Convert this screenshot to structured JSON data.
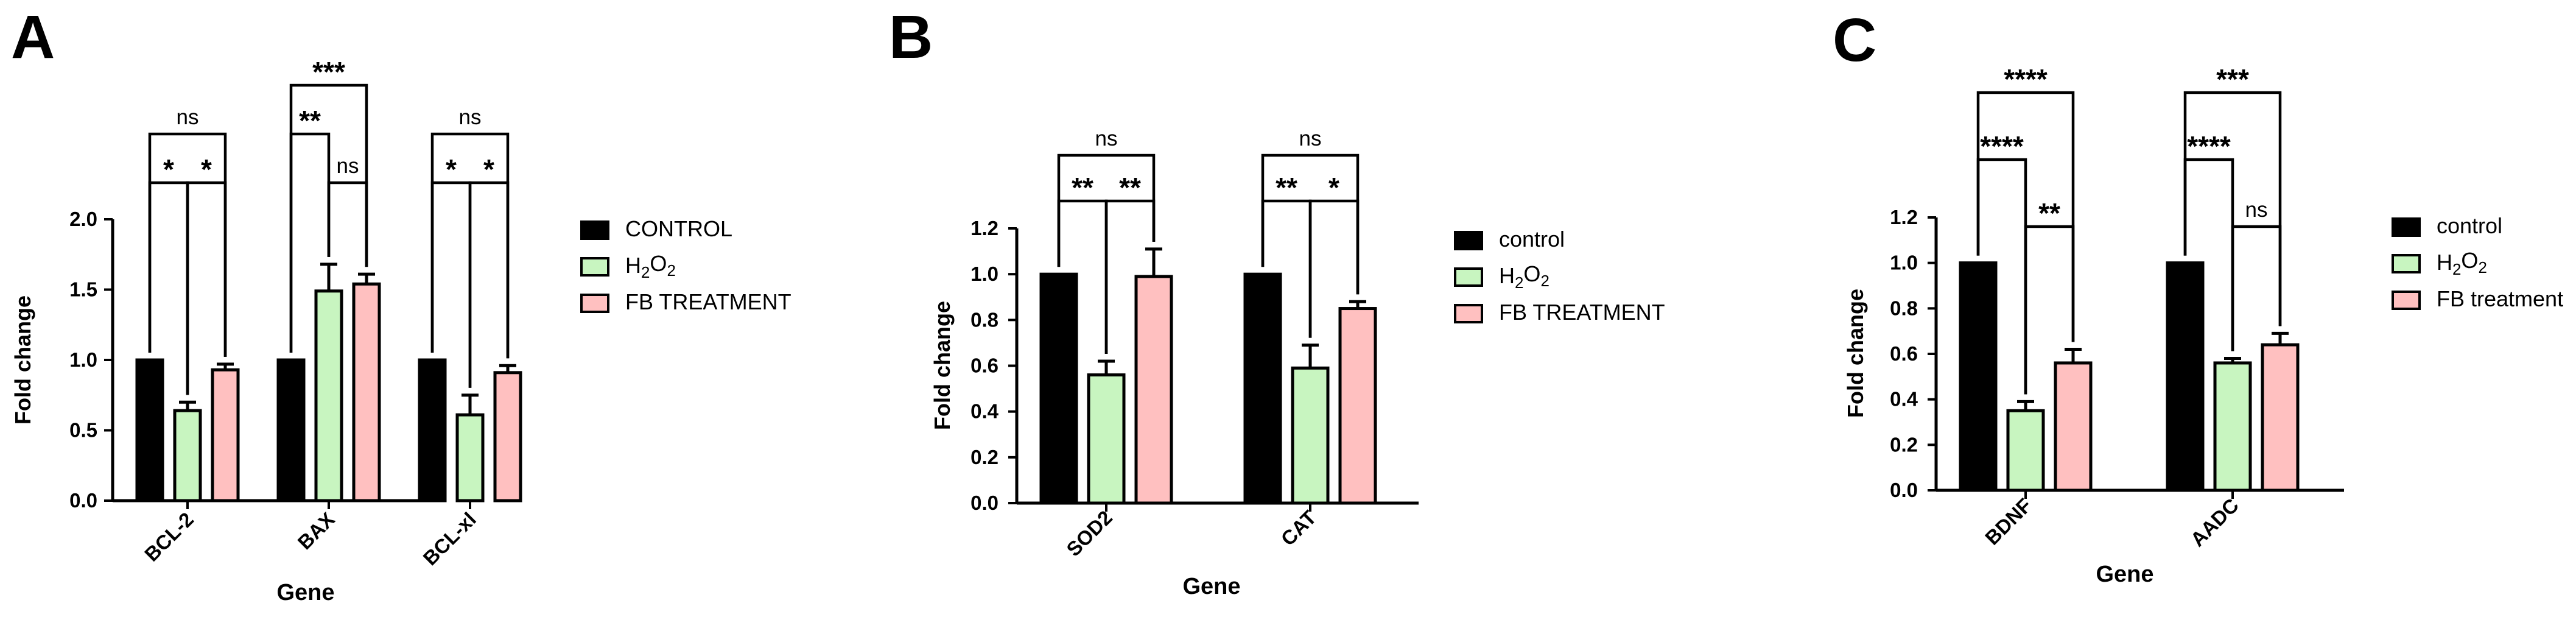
{
  "colors": {
    "control": "#000000",
    "h2o2": "#c8f5c0",
    "fb": "#ffc0c0",
    "stroke": "#000000"
  },
  "chart_data": [
    {
      "panel_label": "A",
      "type": "bar",
      "xlabel": "Gene",
      "ylabel": "Fold change",
      "ylim": [
        0,
        2.0
      ],
      "yticks": [
        "0.0",
        "0.5",
        "1.0",
        "1.5",
        "2.0"
      ],
      "categories": [
        "BCL-2",
        "BAX",
        "BCL-xl"
      ],
      "series": [
        {
          "name": "CONTROL",
          "values": [
            1.0,
            1.0,
            1.0
          ],
          "errors": [
            0,
            0,
            0
          ]
        },
        {
          "name": "H₂O₂",
          "values": [
            0.64,
            1.49,
            0.61
          ],
          "errors": [
            0.06,
            0.19,
            0.14
          ]
        },
        {
          "name": "FB TREATMENT",
          "values": [
            0.93,
            1.54,
            0.91
          ],
          "errors": [
            0.04,
            0.07,
            0.05
          ]
        }
      ],
      "legend": [
        "CONTROL",
        "H₂O₂",
        "FB TREATMENT"
      ],
      "significance": [
        {
          "cat": 0,
          "from": 0,
          "to": 1,
          "level": 0,
          "text": "*"
        },
        {
          "cat": 0,
          "from": 1,
          "to": 2,
          "level": 0,
          "text": "*"
        },
        {
          "cat": 0,
          "from": 0,
          "to": 2,
          "level": 1,
          "text": "ns"
        },
        {
          "cat": 1,
          "from": 1,
          "to": 2,
          "level": 0,
          "text": "ns"
        },
        {
          "cat": 1,
          "from": 0,
          "to": 1,
          "level": 1,
          "text": "**"
        },
        {
          "cat": 1,
          "from": 0,
          "to": 2,
          "level": 2,
          "text": "***"
        },
        {
          "cat": 2,
          "from": 0,
          "to": 1,
          "level": 0,
          "text": "*"
        },
        {
          "cat": 2,
          "from": 1,
          "to": 2,
          "level": 0,
          "text": "*"
        },
        {
          "cat": 2,
          "from": 0,
          "to": 2,
          "level": 1,
          "text": "ns"
        }
      ]
    },
    {
      "panel_label": "B",
      "type": "bar",
      "xlabel": "Gene",
      "ylabel": "Fold change",
      "ylim": [
        0,
        1.2
      ],
      "yticks": [
        "0.0",
        "0.2",
        "0.4",
        "0.6",
        "0.8",
        "1.0",
        "1.2"
      ],
      "categories": [
        "SOD2",
        "CAT"
      ],
      "series": [
        {
          "name": "control",
          "values": [
            1.0,
            1.0
          ],
          "errors": [
            0,
            0
          ]
        },
        {
          "name": "H₂O₂",
          "values": [
            0.56,
            0.59
          ],
          "errors": [
            0.06,
            0.1
          ]
        },
        {
          "name": "FB TREATMENT",
          "values": [
            0.99,
            0.85
          ],
          "errors": [
            0.12,
            0.03
          ]
        }
      ],
      "legend": [
        "control",
        "H₂O₂",
        "FB TREATMENT"
      ],
      "significance": [
        {
          "cat": 0,
          "from": 0,
          "to": 1,
          "level": 0,
          "text": "**"
        },
        {
          "cat": 0,
          "from": 1,
          "to": 2,
          "level": 0,
          "text": "**"
        },
        {
          "cat": 0,
          "from": 0,
          "to": 2,
          "level": 1,
          "text": "ns"
        },
        {
          "cat": 1,
          "from": 0,
          "to": 1,
          "level": 0,
          "text": "**"
        },
        {
          "cat": 1,
          "from": 1,
          "to": 2,
          "level": 0,
          "text": "*"
        },
        {
          "cat": 1,
          "from": 0,
          "to": 2,
          "level": 1,
          "text": "ns"
        }
      ]
    },
    {
      "panel_label": "C",
      "type": "bar",
      "xlabel": "Gene",
      "ylabel": "Fold change",
      "ylim": [
        0,
        1.2
      ],
      "yticks": [
        "0.0",
        "0.2",
        "0.4",
        "0.6",
        "0.8",
        "1.0",
        "1.2"
      ],
      "categories": [
        "BDNF",
        "AADC"
      ],
      "series": [
        {
          "name": "control",
          "values": [
            1.0,
            1.0
          ],
          "errors": [
            0,
            0
          ]
        },
        {
          "name": "H₂O₂",
          "values": [
            0.35,
            0.56
          ],
          "errors": [
            0.04,
            0.02
          ]
        },
        {
          "name": "FB treatment",
          "values": [
            0.56,
            0.64
          ],
          "errors": [
            0.06,
            0.05
          ]
        }
      ],
      "legend": [
        "control",
        "H₂O₂",
        "FB treatment"
      ],
      "significance": [
        {
          "cat": 0,
          "from": 1,
          "to": 2,
          "level": 0,
          "text": "**"
        },
        {
          "cat": 0,
          "from": 0,
          "to": 1,
          "level": 1,
          "text": "****"
        },
        {
          "cat": 0,
          "from": 0,
          "to": 2,
          "level": 2,
          "text": "****"
        },
        {
          "cat": 1,
          "from": 1,
          "to": 2,
          "level": 0,
          "text": "ns"
        },
        {
          "cat": 1,
          "from": 0,
          "to": 1,
          "level": 1,
          "text": "****"
        },
        {
          "cat": 1,
          "from": 0,
          "to": 2,
          "level": 2,
          "text": "***"
        }
      ]
    }
  ]
}
